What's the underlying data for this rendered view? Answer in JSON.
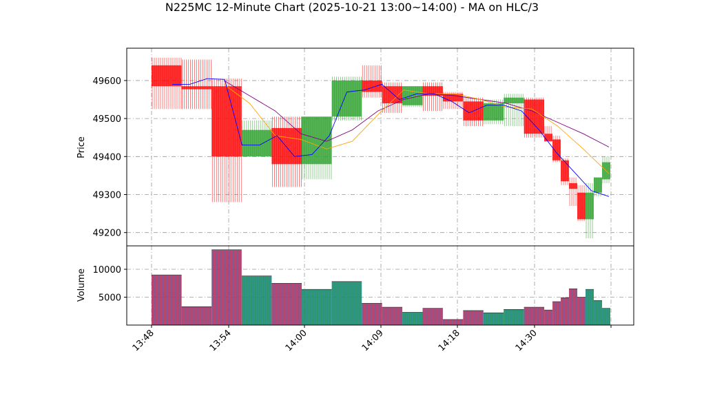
{
  "chart_data": {
    "type": "candlestick",
    "title": "N225MC 12-Minute Chart (2025-10-21 13:00~14:00) - MA on HLC/3",
    "price_panel": {
      "ylabel": "Price",
      "yticks": [
        49200,
        49300,
        49400,
        49500,
        49600
      ],
      "ylim": [
        49165,
        49685
      ],
      "grid": true
    },
    "volume_panel": {
      "ylabel": "Volume",
      "yticks": [
        5000,
        10000
      ],
      "yticks_labels": [
        "5000",
        "10000"
      ],
      "ylim": [
        0,
        14200
      ],
      "grid": true
    },
    "xlabels": [
      "13:48",
      "13:54",
      "14:00",
      "14:09",
      "14:18",
      "14:30"
    ],
    "colors": {
      "up": "#2ca02c",
      "down": "#ff0000",
      "volume_up": "#1a8a7a",
      "volume_down": "#b03060",
      "ma_short": "#0000ff",
      "ma_mid": "#ffa500",
      "ma_long": "#800080"
    },
    "candles": [
      {
        "o": 49640,
        "h": 49660,
        "l": 49525,
        "c": 49585,
        "v": 9000
      },
      {
        "o": 49585,
        "h": 49655,
        "l": 49525,
        "c": 49577,
        "v": 3300
      },
      {
        "o": 49585,
        "h": 49605,
        "l": 49280,
        "c": 49400,
        "v": 13500
      },
      {
        "o": 49400,
        "h": 49495,
        "l": 49400,
        "c": 49470,
        "v": 8800
      },
      {
        "o": 49475,
        "h": 49505,
        "l": 49320,
        "c": 49380,
        "v": 7500
      },
      {
        "o": 49380,
        "h": 49505,
        "l": 49340,
        "c": 49505,
        "v": 6400
      },
      {
        "o": 49505,
        "h": 49610,
        "l": 49495,
        "c": 49600,
        "v": 7800
      },
      {
        "o": 49600,
        "h": 49640,
        "l": 49555,
        "c": 49570,
        "v": 3900
      },
      {
        "o": 49585,
        "h": 49595,
        "l": 49515,
        "c": 49540,
        "v": 3200
      },
      {
        "o": 49535,
        "h": 49585,
        "l": 49530,
        "c": 49585,
        "v": 2300
      },
      {
        "o": 49585,
        "h": 49595,
        "l": 49520,
        "c": 49560,
        "v": 3000
      },
      {
        "o": 49565,
        "h": 49570,
        "l": 49525,
        "c": 49545,
        "v": 1000
      },
      {
        "o": 49545,
        "h": 49555,
        "l": 49480,
        "c": 49495,
        "v": 2600
      },
      {
        "o": 49495,
        "h": 49550,
        "l": 49485,
        "c": 49540,
        "v": 2200
      },
      {
        "o": 49540,
        "h": 49565,
        "l": 49480,
        "c": 49555,
        "v": 2800
      },
      {
        "o": 49550,
        "h": 49555,
        "l": 49450,
        "c": 49460,
        "v": 3200
      },
      {
        "o": 49460,
        "h": 49480,
        "l": 49440,
        "c": 49440,
        "v": 2700
      },
      {
        "o": 49445,
        "h": 49455,
        "l": 49385,
        "c": 49390,
        "v": 4200
      },
      {
        "o": 49390,
        "h": 49395,
        "l": 49325,
        "c": 49335,
        "v": 4900
      },
      {
        "o": 49330,
        "h": 49345,
        "l": 49270,
        "c": 49315,
        "v": 6500
      },
      {
        "o": 49305,
        "h": 49325,
        "l": 49230,
        "c": 49235,
        "v": 5000
      },
      {
        "o": 49235,
        "h": 49330,
        "l": 49185,
        "c": 49305,
        "v": 6400
      },
      {
        "o": 49305,
        "h": 49345,
        "l": 49295,
        "c": 49345,
        "v": 4400
      },
      {
        "o": 49340,
        "h": 49400,
        "l": 49330,
        "c": 49385,
        "v": 3000
      }
    ],
    "ma_short": [
      49590,
      49590,
      49605,
      49603,
      49430,
      49430,
      49455,
      49400,
      49405,
      49455,
      49570,
      49575,
      49590,
      49550,
      49565,
      49565,
      49545,
      49515,
      49535,
      49535,
      49520,
      49470,
      49410,
      49360,
      49310,
      49295
    ],
    "ma_mid": [
      49590,
      49540,
      49455,
      49445,
      49420,
      49440,
      49510,
      49575,
      49565,
      49565,
      49550,
      49530,
      49525,
      49480,
      49420,
      49355
    ],
    "ma_long": [
      49600,
      49560,
      49520,
      49460,
      49440,
      49470,
      49520,
      49550,
      49565,
      49560,
      49550,
      49540,
      49520,
      49490,
      49460,
      49425
    ]
  }
}
